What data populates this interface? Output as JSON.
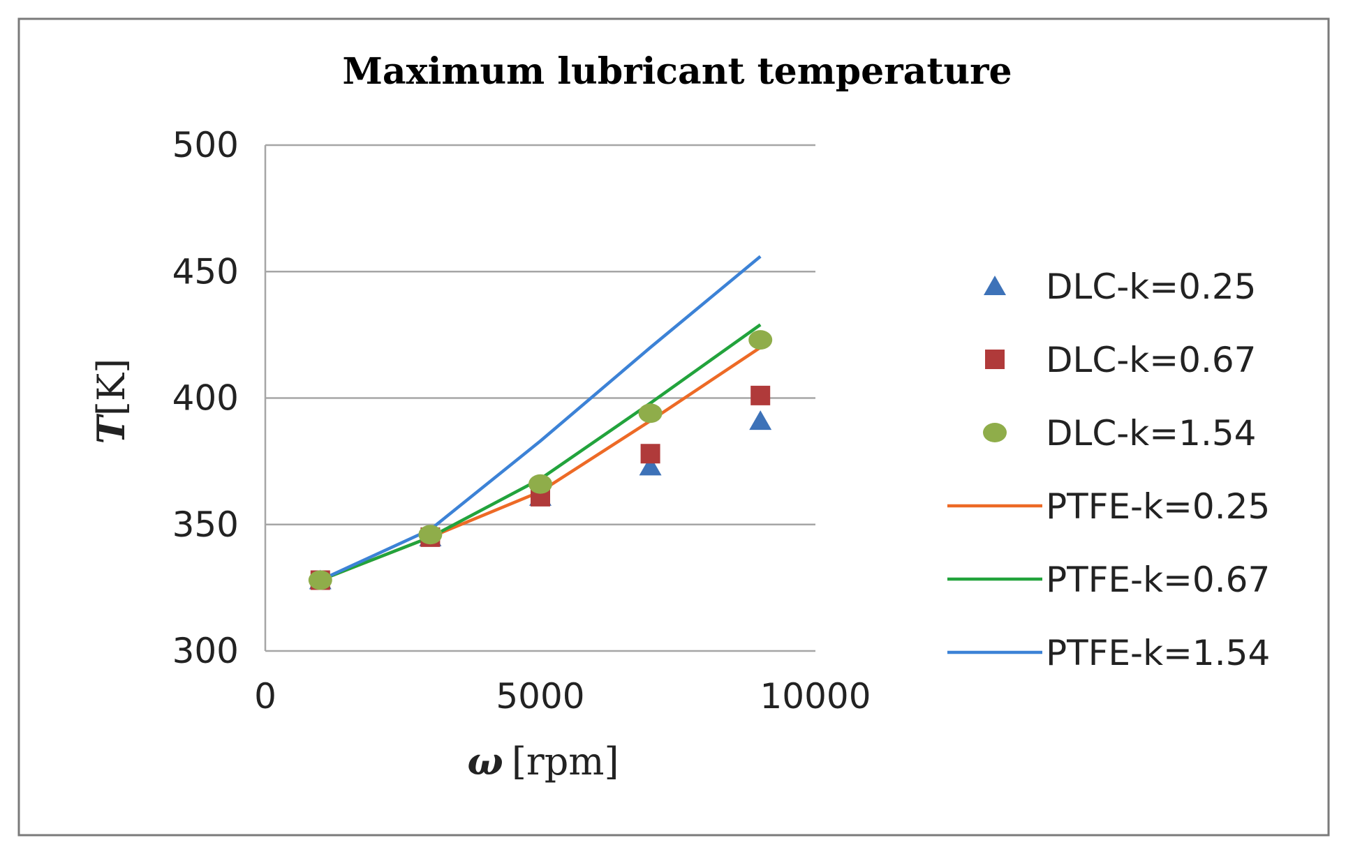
{
  "chart_data": {
    "type": "scatter",
    "title": "Maximum lubricant temperature",
    "xlabel": {
      "symbol": "ω",
      "unit": "[rpm]"
    },
    "ylabel": {
      "symbol": "T",
      "unit": "[K]"
    },
    "xlim": [
      0,
      10000
    ],
    "ylim": [
      300,
      500
    ],
    "xticks": [
      "0",
      "5000",
      "10000"
    ],
    "xtick_values": [
      0,
      5000,
      10000
    ],
    "yticks": [
      "300",
      "350",
      "400",
      "450",
      "500"
    ],
    "ytick_values": [
      300,
      350,
      400,
      450,
      500
    ],
    "grid": "horizontal",
    "legend_position": "right",
    "series": [
      {
        "name": "DLC-k=0.25",
        "kind": "marker",
        "marker": "triangle",
        "color": "#3d72b8",
        "x": [
          1000,
          3000,
          5000,
          7000,
          9000
        ],
        "y": [
          328,
          345,
          361,
          373,
          391
        ]
      },
      {
        "name": "DLC-k=0.67",
        "kind": "marker",
        "marker": "square",
        "color": "#b03a3a",
        "x": [
          1000,
          3000,
          5000,
          7000,
          9000
        ],
        "y": [
          328,
          345,
          361,
          378,
          401
        ]
      },
      {
        "name": "DLC-k=1.54",
        "kind": "marker",
        "marker": "circle",
        "color": "#8fad4a",
        "x": [
          1000,
          3000,
          5000,
          7000,
          9000
        ],
        "y": [
          328,
          346,
          366,
          394,
          423
        ]
      },
      {
        "name": "PTFE-k=0.25",
        "kind": "line",
        "color": "#ed6a26",
        "x": [
          1000,
          3000,
          5000,
          7000,
          9000
        ],
        "y": [
          328,
          345,
          363,
          391,
          420
        ]
      },
      {
        "name": "PTFE-k=0.67",
        "kind": "line",
        "color": "#22a33c",
        "x": [
          1000,
          3000,
          5000,
          7000,
          9000
        ],
        "y": [
          328,
          345,
          368,
          398,
          429
        ]
      },
      {
        "name": "PTFE-k=1.54",
        "kind": "line",
        "color": "#3c82d6",
        "x": [
          1000,
          3000,
          5000,
          7000,
          9000
        ],
        "y": [
          328,
          348,
          383,
          420,
          456
        ]
      }
    ]
  }
}
